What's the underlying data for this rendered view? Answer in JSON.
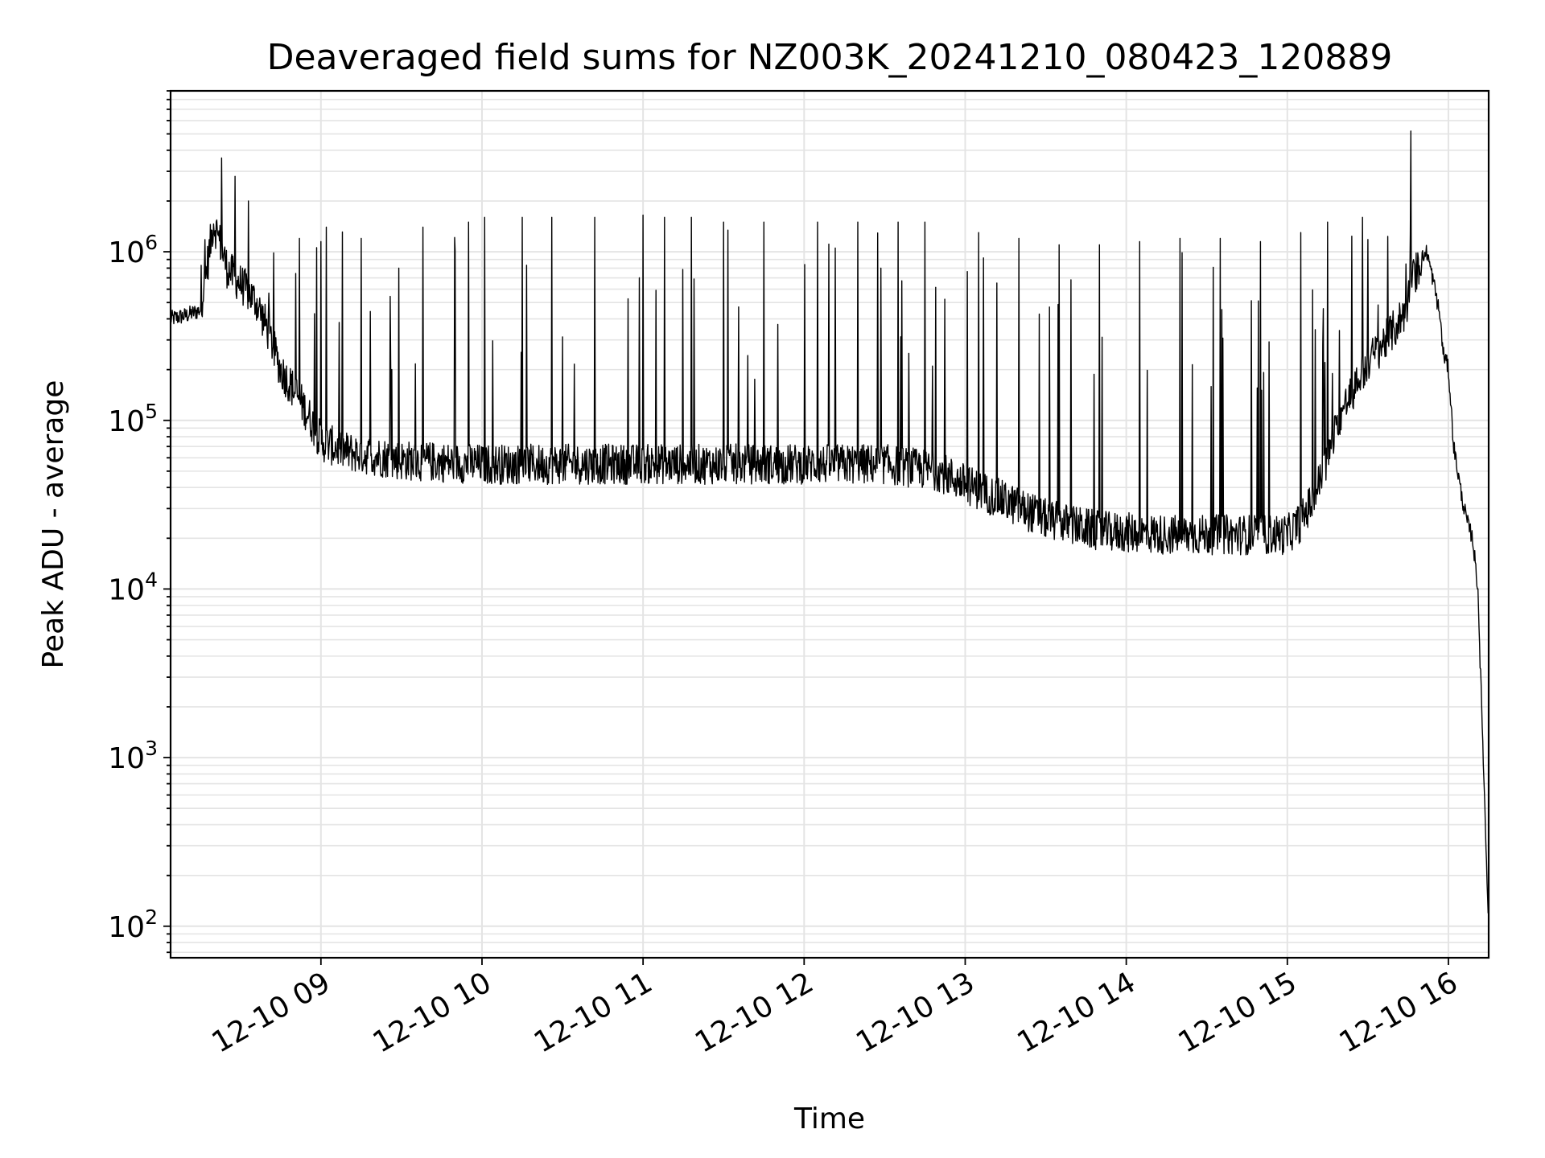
{
  "chart_data": {
    "type": "line",
    "title": "Deaveraged field sums for NZ003K_20241210_080423_120889",
    "xlabel": "Time",
    "ylabel": "Peak ADU - average",
    "yscale": "log",
    "ylim": [
      65,
      9000000
    ],
    "xlim": [
      "2024-12-10 08:04",
      "2024-12-10 16:15"
    ],
    "grid": true,
    "grid_minor": true,
    "line_color": "#000000",
    "x_tick_labels": [
      "12-10 09",
      "12-10 10",
      "12-10 11",
      "12-10 12",
      "12-10 13",
      "12-10 14",
      "12-10 15",
      "12-10 16"
    ],
    "x_tick_times": [
      "2024-12-10 09:00",
      "2024-12-10 10:00",
      "2024-12-10 11:00",
      "2024-12-10 12:00",
      "2024-12-10 13:00",
      "2024-12-10 14:00",
      "2024-12-10 15:00",
      "2024-12-10 16:00"
    ],
    "y_ticks": [
      {
        "value": 100,
        "base": "10",
        "exp": "2"
      },
      {
        "value": 1000,
        "base": "10",
        "exp": "3"
      },
      {
        "value": 10000,
        "base": "10",
        "exp": "4"
      },
      {
        "value": 100000,
        "base": "10",
        "exp": "5"
      },
      {
        "value": 1000000,
        "base": "10",
        "exp": "6"
      }
    ],
    "series": [
      {
        "x": [
          "2024-12-10 08:04",
          "2024-12-10 08:10",
          "2024-12-10 08:15",
          "2024-12-10 08:18",
          "2024-12-10 08:20",
          "2024-12-10 08:22",
          "2024-12-10 08:25",
          "2024-12-10 08:28",
          "2024-12-10 08:32",
          "2024-12-10 08:36",
          "2024-12-10 08:40",
          "2024-12-10 08:45",
          "2024-12-10 08:50",
          "2024-12-10 08:55",
          "2024-12-10 09:00",
          "2024-12-10 09:10",
          "2024-12-10 09:30",
          "2024-12-10 10:00",
          "2024-12-10 10:30",
          "2024-12-10 11:00",
          "2024-12-10 11:30",
          "2024-12-10 12:00",
          "2024-12-10 12:30",
          "2024-12-10 12:50",
          "2024-12-10 13:00",
          "2024-12-10 13:15",
          "2024-12-10 13:30",
          "2024-12-10 13:50",
          "2024-12-10 14:15",
          "2024-12-10 14:45",
          "2024-12-10 15:00",
          "2024-12-10 15:05",
          "2024-12-10 15:10",
          "2024-12-10 15:15",
          "2024-12-10 15:20",
          "2024-12-10 15:30",
          "2024-12-10 15:40",
          "2024-12-10 15:44",
          "2024-12-10 15:47",
          "2024-12-10 15:50",
          "2024-12-10 15:52",
          "2024-12-10 15:55",
          "2024-12-10 15:57",
          "2024-12-10 15:58",
          "2024-12-10 15:59",
          "2024-12-10 16:00",
          "2024-12-10 16:02",
          "2024-12-10 16:05",
          "2024-12-10 16:07",
          "2024-12-10 16:09",
          "2024-12-10 16:11",
          "2024-12-10 16:12",
          "2024-12-10 16:13",
          "2024-12-10 16:14",
          "2024-12-10 16:15"
        ],
        "y": [
          400000,
          420000,
          450000,
          900000,
          1500000,
          1200000,
          800000,
          700000,
          600000,
          500000,
          350000,
          200000,
          150000,
          110000,
          75000,
          65000,
          58000,
          55000,
          55000,
          55000,
          55000,
          55000,
          55000,
          50000,
          42000,
          33000,
          26000,
          22000,
          21000,
          21000,
          21000,
          25000,
          35000,
          60000,
          110000,
          220000,
          350000,
          450000,
          700000,
          900000,
          1000000,
          600000,
          400000,
          250000,
          230000,
          200000,
          70000,
          35000,
          25000,
          20000,
          10000,
          3000,
          1000,
          300,
          100
        ]
      }
    ],
    "spikes": [
      {
        "x": "2024-12-10 08:23",
        "y": 3600000
      },
      {
        "x": "2024-12-10 08:28",
        "y": 2800000
      },
      {
        "x": "2024-12-10 08:33",
        "y": 2000000
      },
      {
        "x": "2024-12-10 08:52",
        "y": 1200000
      },
      {
        "x": "2024-12-10 09:00",
        "y": 1150000
      },
      {
        "x": "2024-12-10 09:02",
        "y": 1400000
      },
      {
        "x": "2024-12-10 09:15",
        "y": 1200000
      },
      {
        "x": "2024-12-10 09:29",
        "y": 800000
      },
      {
        "x": "2024-12-10 09:38",
        "y": 1400000
      },
      {
        "x": "2024-12-10 09:55",
        "y": 1500000
      },
      {
        "x": "2024-12-10 10:01",
        "y": 1600000
      },
      {
        "x": "2024-12-10 10:15",
        "y": 1600000
      },
      {
        "x": "2024-12-10 10:26",
        "y": 1600000
      },
      {
        "x": "2024-12-10 10:42",
        "y": 1600000
      },
      {
        "x": "2024-12-10 11:00",
        "y": 1650000
      },
      {
        "x": "2024-12-10 11:08",
        "y": 1600000
      },
      {
        "x": "2024-12-10 11:18",
        "y": 1600000
      },
      {
        "x": "2024-12-10 11:30",
        "y": 1500000
      },
      {
        "x": "2024-12-10 11:45",
        "y": 1500000
      },
      {
        "x": "2024-12-10 12:05",
        "y": 1500000
      },
      {
        "x": "2024-12-10 12:20",
        "y": 1500000
      },
      {
        "x": "2024-12-10 12:35",
        "y": 1500000
      },
      {
        "x": "2024-12-10 12:45",
        "y": 1500000
      },
      {
        "x": "2024-12-10 13:05",
        "y": 1300000
      },
      {
        "x": "2024-12-10 13:20",
        "y": 1200000
      },
      {
        "x": "2024-12-10 13:35",
        "y": 1100000
      },
      {
        "x": "2024-12-10 13:50",
        "y": 1100000
      },
      {
        "x": "2024-12-10 14:05",
        "y": 1150000
      },
      {
        "x": "2024-12-10 14:20",
        "y": 1200000
      },
      {
        "x": "2024-12-10 14:35",
        "y": 1200000
      },
      {
        "x": "2024-12-10 14:50",
        "y": 1150000
      },
      {
        "x": "2024-12-10 15:05",
        "y": 1300000
      },
      {
        "x": "2024-12-10 15:15",
        "y": 1500000
      },
      {
        "x": "2024-12-10 15:28",
        "y": 1600000
      },
      {
        "x": "2024-12-10 15:46",
        "y": 5200000
      }
    ]
  }
}
